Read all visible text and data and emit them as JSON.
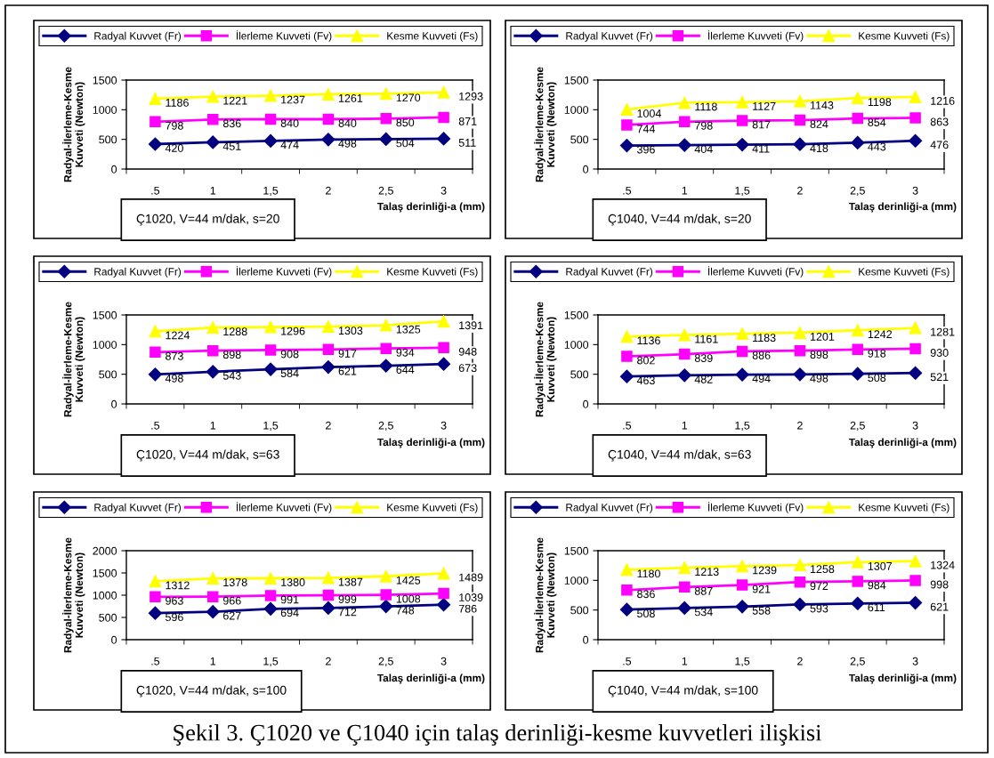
{
  "chart_data": [
    {
      "type": "line",
      "categories": [
        ".5",
        "1",
        "1,5",
        "2",
        "2,5",
        "3"
      ],
      "xlabel": "Talaş derinliği-a (mm)",
      "ylabel": "Radyal-İlerleme-Kesme\nKuvveti (Newton)",
      "ylim": [
        0,
        1500
      ],
      "yticks": [
        0,
        500,
        1000,
        1500
      ],
      "legend": "top",
      "data_labels": true,
      "grid": false,
      "annotations": [
        "Ç1020, V=44 m/dak, s=20"
      ],
      "series": [
        {
          "name": "Radyal Kuvvet (Fr)",
          "color": "#000080",
          "marker": "diamond",
          "values": [
            420,
            451,
            474,
            498,
            504,
            511
          ]
        },
        {
          "name": "İlerleme Kuvveti (Fv)",
          "color": "#ff00ff",
          "marker": "square",
          "values": [
            798,
            836,
            840,
            840,
            850,
            871
          ]
        },
        {
          "name": "Kesme Kuvveti (Fs)",
          "color": "#ffff00",
          "marker": "triangle",
          "values": [
            1186,
            1221,
            1237,
            1261,
            1270,
            1293
          ]
        }
      ]
    },
    {
      "type": "line",
      "categories": [
        ".5",
        "1",
        "1,5",
        "2",
        "2,5",
        "3"
      ],
      "xlabel": "Talaş derinliği-a (mm)",
      "ylabel": "Radyal-İlerleme-Kesme\nKuvveti (Newton)",
      "ylim": [
        0,
        1500
      ],
      "yticks": [
        0,
        500,
        1000,
        1500
      ],
      "legend": "top",
      "data_labels": true,
      "grid": false,
      "annotations": [
        "Ç1040, V=44 m/dak, s=20"
      ],
      "series": [
        {
          "name": "Radyal Kuvvet (Fr)",
          "color": "#000080",
          "marker": "diamond",
          "values": [
            396,
            404,
            411,
            418,
            443,
            476
          ]
        },
        {
          "name": "İlerleme Kuvveti (Fv)",
          "color": "#ff00ff",
          "marker": "square",
          "values": [
            744,
            798,
            817,
            824,
            854,
            863
          ]
        },
        {
          "name": "Kesme Kuvveti (Fs)",
          "color": "#ffff00",
          "marker": "triangle",
          "values": [
            1004,
            1118,
            1127,
            1143,
            1198,
            1216
          ]
        }
      ]
    },
    {
      "type": "line",
      "categories": [
        ".5",
        "1",
        "1,5",
        "2",
        "2,5",
        "3"
      ],
      "xlabel": "Talaş derinliği-a (mm)",
      "ylabel": "Radyal-İlerleme-Kesme\nKuvveti (Newton)",
      "ylim": [
        0,
        1500
      ],
      "yticks": [
        0,
        500,
        1000,
        1500
      ],
      "legend": "top",
      "data_labels": true,
      "grid": false,
      "annotations": [
        "Ç1020, V=44 m/dak, s=63"
      ],
      "series": [
        {
          "name": "Radyal Kuvvet (Fr)",
          "color": "#000080",
          "marker": "diamond",
          "values": [
            498,
            543,
            584,
            621,
            644,
            673
          ]
        },
        {
          "name": "İlerleme Kuvveti (Fv)",
          "color": "#ff00ff",
          "marker": "square",
          "values": [
            873,
            898,
            908,
            917,
            934,
            948
          ]
        },
        {
          "name": "Kesme Kuvveti (Fs)",
          "color": "#ffff00",
          "marker": "triangle",
          "values": [
            1224,
            1288,
            1296,
            1303,
            1325,
            1391
          ]
        }
      ]
    },
    {
      "type": "line",
      "categories": [
        ".5",
        "1",
        "1,5",
        "2",
        "2,5",
        "3"
      ],
      "xlabel": "Talaş derinliği-a (mm)",
      "ylabel": "Radyal-İlerleme-Kesme\nKuvveti (Newton)",
      "ylim": [
        0,
        1500
      ],
      "yticks": [
        0,
        500,
        1000,
        1500
      ],
      "legend": "top",
      "data_labels": true,
      "grid": false,
      "annotations": [
        "Ç1040, V=44 m/dak, s=63"
      ],
      "series": [
        {
          "name": "Radyal Kuvvet (Fr)",
          "color": "#000080",
          "marker": "diamond",
          "values": [
            463,
            482,
            494,
            498,
            508,
            521
          ]
        },
        {
          "name": "İlerleme Kuvveti (Fv)",
          "color": "#ff00ff",
          "marker": "square",
          "values": [
            802,
            839,
            886,
            898,
            918,
            930
          ]
        },
        {
          "name": "Kesme Kuvveti (Fs)",
          "color": "#ffff00",
          "marker": "triangle",
          "values": [
            1136,
            1161,
            1183,
            1201,
            1242,
            1281
          ]
        }
      ]
    },
    {
      "type": "line",
      "categories": [
        ".5",
        "1",
        "1,5",
        "2",
        "2,5",
        "3"
      ],
      "xlabel": "Talaş derinliği-a (mm)",
      "ylabel": "Radyal-İlerleme-Kesme\nKuvveti (Newton)",
      "ylim": [
        0,
        2000
      ],
      "yticks": [
        0,
        500,
        1000,
        1500,
        2000
      ],
      "legend": "top",
      "data_labels": true,
      "grid": false,
      "annotations": [
        "Ç1020, V=44 m/dak, s=100"
      ],
      "series": [
        {
          "name": "Radyal Kuvvet (Fr)",
          "color": "#000080",
          "marker": "diamond",
          "values": [
            596,
            627,
            694,
            712,
            748,
            786
          ]
        },
        {
          "name": "İlerleme Kuvveti (Fv)",
          "color": "#ff00ff",
          "marker": "square",
          "values": [
            963,
            966,
            991,
            999,
            1008,
            1039
          ]
        },
        {
          "name": "Kesme Kuvveti (Fs)",
          "color": "#ffff00",
          "marker": "triangle",
          "values": [
            1312,
            1378,
            1380,
            1387,
            1425,
            1489
          ]
        }
      ]
    },
    {
      "type": "line",
      "categories": [
        ".5",
        "1",
        "1,5",
        "2",
        "2,5",
        "3"
      ],
      "xlabel": "Talaş derinliği-a (mm)",
      "ylabel": "Radyal-İlerleme-Kesme\nKuvveti (Newton)",
      "ylim": [
        0,
        1500
      ],
      "yticks": [
        0,
        500,
        1000,
        1500
      ],
      "legend": "top",
      "data_labels": true,
      "grid": false,
      "annotations": [
        "Ç1040, V=44 m/dak, s=100",
        "Şekil 3. Ç1020 ve Ç1040 için talaş derinliği-kesme kuvvetleri ilişkisi"
      ],
      "series": [
        {
          "name": "Radyal Kuvvet (Fr)",
          "color": "#000080",
          "marker": "diamond",
          "values": [
            508,
            534,
            558,
            593,
            611,
            621
          ]
        },
        {
          "name": "İlerleme Kuvveti (Fv)",
          "color": "#ff00ff",
          "marker": "square",
          "values": [
            836,
            887,
            921,
            972,
            984,
            998
          ]
        },
        {
          "name": "Kesme Kuvveti (Fs)",
          "color": "#ffff00",
          "marker": "triangle",
          "values": [
            1180,
            1213,
            1239,
            1258,
            1307,
            1324
          ]
        }
      ]
    }
  ]
}
